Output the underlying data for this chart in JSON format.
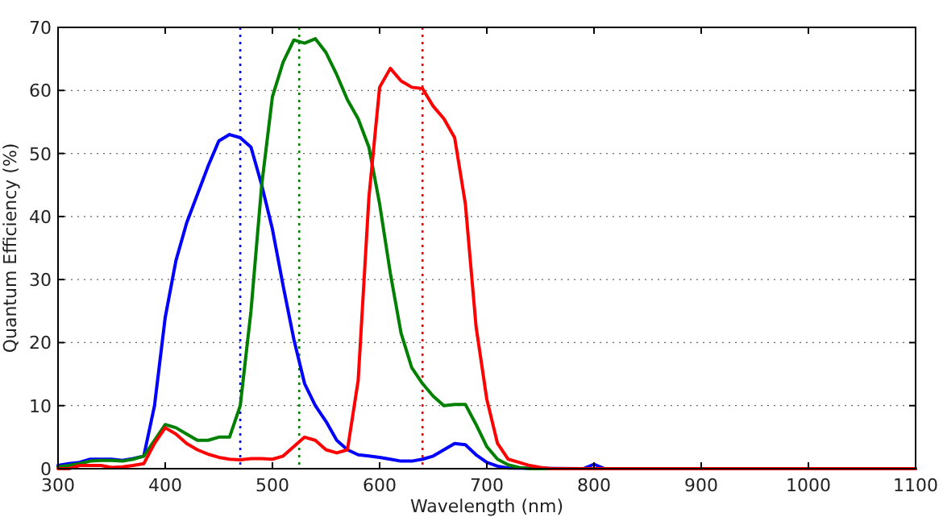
{
  "chart_data": {
    "type": "line",
    "xlabel": "Wavelength (nm)",
    "ylabel": "Quantum Efficiency (%)",
    "xlim": [
      300,
      1100
    ],
    "xticks": [
      300,
      400,
      500,
      600,
      700,
      800,
      900,
      1000,
      1100
    ],
    "ylim": [
      0,
      70
    ],
    "yticks": [
      0,
      10,
      20,
      30,
      40,
      50,
      60,
      70
    ],
    "grid": "y",
    "line_style": "solid",
    "marker": "none",
    "series": [
      {
        "color": "#0000ff",
        "x": [
          300,
          310,
          320,
          330,
          340,
          350,
          360,
          370,
          380,
          390,
          400,
          410,
          420,
          430,
          440,
          450,
          460,
          470,
          480,
          490,
          500,
          510,
          520,
          530,
          540,
          550,
          560,
          570,
          580,
          590,
          600,
          610,
          620,
          630,
          640,
          650,
          660,
          670,
          680,
          690,
          700,
          710,
          720,
          790,
          800,
          810,
          1100
        ],
        "values": [
          0.5,
          0.8,
          1,
          1.5,
          1.5,
          1.5,
          1.3,
          1.6,
          2,
          10,
          24,
          33,
          39,
          43.5,
          48,
          52,
          53,
          52.5,
          51,
          45,
          38,
          29,
          20.5,
          13.5,
          10,
          7.5,
          4.5,
          3,
          2.2,
          2,
          1.8,
          1.5,
          1.2,
          1.2,
          1.5,
          2,
          3,
          4,
          3.8,
          2.2,
          1,
          0.4,
          0.1,
          0,
          0.7,
          0,
          0
        ]
      },
      {
        "color": "#008000",
        "x": [
          300,
          310,
          320,
          330,
          340,
          350,
          360,
          370,
          380,
          390,
          400,
          410,
          420,
          430,
          440,
          450,
          460,
          470,
          480,
          490,
          500,
          510,
          520,
          530,
          540,
          550,
          560,
          570,
          580,
          590,
          600,
          610,
          620,
          630,
          640,
          650,
          660,
          670,
          680,
          690,
          700,
          710,
          720,
          730,
          740,
          1100
        ],
        "values": [
          0.3,
          0.5,
          0.8,
          1.2,
          1.3,
          1.3,
          1.2,
          1.5,
          2,
          4.5,
          7,
          6.5,
          5.5,
          4.5,
          4.5,
          5,
          5,
          10,
          25,
          45,
          59,
          64.5,
          68,
          67.5,
          68.2,
          66,
          62.5,
          58.5,
          55.5,
          51,
          42,
          31,
          21.5,
          16,
          13.5,
          11.5,
          10,
          10.2,
          10.2,
          7,
          3.5,
          1.5,
          0.6,
          0.2,
          0,
          0
        ]
      },
      {
        "color": "#ff0000",
        "x": [
          300,
          310,
          320,
          330,
          340,
          350,
          360,
          370,
          380,
          390,
          400,
          410,
          420,
          430,
          440,
          450,
          460,
          470,
          480,
          490,
          500,
          510,
          520,
          530,
          540,
          550,
          560,
          570,
          580,
          590,
          600,
          610,
          620,
          630,
          640,
          650,
          660,
          670,
          680,
          690,
          700,
          710,
          720,
          730,
          740,
          750,
          760,
          1100
        ],
        "values": [
          0,
          0,
          0.5,
          0.5,
          0.5,
          0.2,
          0.3,
          0.5,
          0.8,
          4,
          6.5,
          5.5,
          4,
          3,
          2.3,
          1.8,
          1.5,
          1.4,
          1.6,
          1.6,
          1.5,
          2,
          3.5,
          5,
          4.5,
          3,
          2.5,
          3,
          14,
          43,
          60.5,
          63.5,
          61.5,
          60.5,
          60.3,
          57.5,
          55.5,
          52.5,
          42,
          22.5,
          11,
          4,
          1.5,
          1,
          0.5,
          0.2,
          0,
          0
        ]
      }
    ],
    "ref_lines": [
      {
        "axis": "x",
        "value": 470,
        "color": "#0000ff",
        "line_style": "dotted"
      },
      {
        "axis": "x",
        "value": 525,
        "color": "#008000",
        "line_style": "dotted"
      },
      {
        "axis": "x",
        "value": 640,
        "color": "#ff0000",
        "line_style": "dotted"
      }
    ]
  }
}
